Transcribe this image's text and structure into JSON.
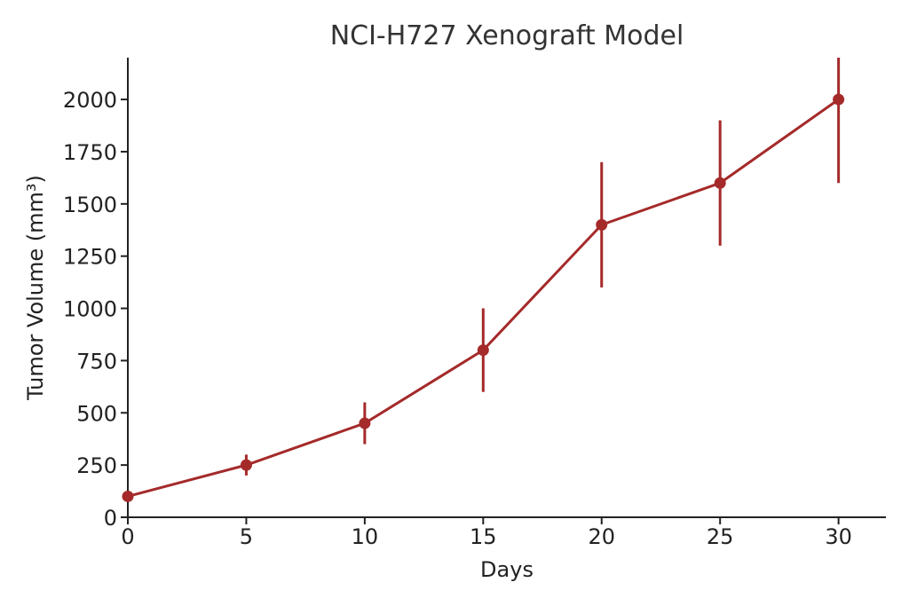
{
  "chart_data": {
    "type": "line",
    "title": "NCI-H727 Xenograft Model",
    "xlabel": "Days",
    "ylabel": "Tumor Volume (mm³)",
    "xlim": [
      0,
      32
    ],
    "ylim": [
      0,
      2200
    ],
    "xticks": [
      "0",
      "5",
      "10",
      "15",
      "20",
      "25",
      "30"
    ],
    "yticks": [
      "0",
      "250",
      "500",
      "750",
      "1000",
      "1250",
      "1500",
      "1750",
      "2000"
    ],
    "grid": false,
    "series": [
      {
        "name": "Tumor Volume",
        "color": "#a52a2a",
        "x": [
          0,
          5,
          10,
          15,
          20,
          25,
          30
        ],
        "y": [
          100,
          250,
          450,
          800,
          1400,
          1600,
          2000
        ],
        "yerr": [
          10,
          50,
          100,
          200,
          300,
          300,
          400
        ]
      }
    ]
  }
}
